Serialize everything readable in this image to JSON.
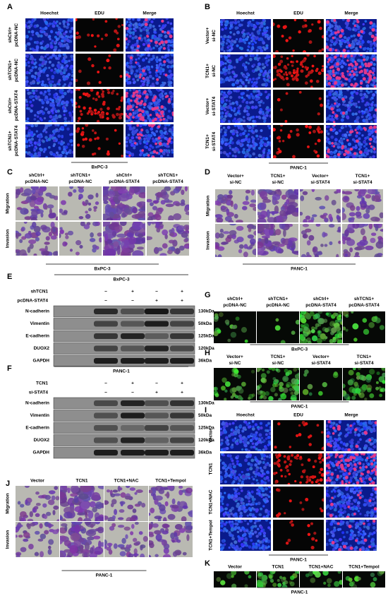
{
  "A": {
    "label": "A",
    "columns": [
      "Hoechst",
      "EDU",
      "Merge"
    ],
    "rows": [
      [
        "shCtrl+",
        "pcDNA-NC"
      ],
      [
        "shTCN1+",
        "pcDNA-NC"
      ],
      [
        "shCtrl+",
        "pcDNA-STAT4"
      ],
      [
        "shTCN1+",
        "pcDNA-STAT4"
      ]
    ],
    "cell_line": "BxPC-3"
  },
  "B": {
    "label": "B",
    "columns": [
      "Hoechst",
      "EDU",
      "Merge"
    ],
    "rows": [
      [
        "Vector+",
        "si-NC"
      ],
      [
        "TCN1+",
        "si-NC"
      ],
      [
        "Vector+",
        "si-STAT4"
      ],
      [
        "TCN1+",
        "si-STAT4"
      ]
    ],
    "cell_line": "PANC-1"
  },
  "C": {
    "label": "C",
    "columns": [
      [
        "shCtrl+",
        "pcDNA-NC"
      ],
      [
        "shTCN1+",
        "pcDNA-NC"
      ],
      [
        "shCtrl+",
        "pcDNA-STAT4"
      ],
      [
        "shTCN1+",
        "pcDNA-STAT4"
      ]
    ],
    "rows": [
      "Migration",
      "Invasion"
    ],
    "cell_line": "BxPC-3"
  },
  "D": {
    "label": "D",
    "columns": [
      [
        "Vector+",
        "si-NC"
      ],
      [
        "TCN1+",
        "si-NC"
      ],
      [
        "Vector+",
        "si-STAT4"
      ],
      [
        "TCN1+",
        "si-STAT4"
      ]
    ],
    "rows": [
      "Migration",
      "Invasion"
    ],
    "cell_line": "PANC-1"
  },
  "E": {
    "label": "E",
    "cell_line": "BxPC-3",
    "conditions": [
      {
        "name": "shTCN1",
        "signs": [
          "−",
          "+",
          "−",
          "+"
        ]
      },
      {
        "name": "pcDNA-STAT4",
        "signs": [
          "−",
          "−",
          "+",
          "+"
        ]
      }
    ],
    "proteins": [
      {
        "name": "N-cadherin",
        "size": "130kDa"
      },
      {
        "name": "Vimentin",
        "size": "50kDa"
      },
      {
        "name": "E-cadherin",
        "size": "125kDa"
      },
      {
        "name": "DUOX2",
        "size": "120kDa"
      },
      {
        "name": "GAPDH",
        "size": "36kDa"
      }
    ]
  },
  "F": {
    "label": "F",
    "cell_line": "PANC-1",
    "conditions": [
      {
        "name": "TCN1",
        "signs": [
          "−",
          "+",
          "−",
          "+"
        ]
      },
      {
        "name": "si-STAT4",
        "signs": [
          "−",
          "−",
          "+",
          "+"
        ]
      }
    ],
    "proteins": [
      {
        "name": "N-cadherin",
        "size": "130kDa"
      },
      {
        "name": "Vimentin",
        "size": "50kDa"
      },
      {
        "name": "E-cadherin",
        "size": "125kDa"
      },
      {
        "name": "DUOX2",
        "size": "120kDa"
      },
      {
        "name": "GAPDH",
        "size": "36kDa"
      }
    ]
  },
  "G": {
    "label": "G",
    "columns": [
      [
        "shCtrl+",
        "pcDNA-NC"
      ],
      [
        "shTCN1+",
        "pcDNA-NC"
      ],
      [
        "shCtrl+",
        "pcDNA-STAT4"
      ],
      [
        "shTCN1+",
        "pcDNA-STAT4"
      ]
    ],
    "cell_line": "BxPC-3"
  },
  "H": {
    "label": "H",
    "columns": [
      [
        "Vector+",
        "si-NC"
      ],
      [
        "TCN1+",
        "si-NC"
      ],
      [
        "Vector+",
        "si-STAT4"
      ],
      [
        "TCN1+",
        "si-STAT4"
      ]
    ],
    "cell_line": "PANC-1"
  },
  "I": {
    "label": "I",
    "columns": [
      "Hoechst",
      "EDU",
      "Merge"
    ],
    "rows": [
      "Vector",
      "TCN1",
      "TCN1+NAC",
      "TCN1+Tempol"
    ],
    "cell_line": "PANC-1"
  },
  "J": {
    "label": "J",
    "columns": [
      "Vector",
      "TCN1",
      "TCN1+NAC",
      "TCN1+Tempol"
    ],
    "rows": [
      "Migration",
      "Invasion"
    ],
    "cell_line": "PANC-1"
  },
  "K": {
    "label": "K",
    "columns": [
      "Vector",
      "TCN1",
      "TCN1+NAC",
      "TCN1+Tempol"
    ],
    "cell_line": "PANC-1"
  }
}
